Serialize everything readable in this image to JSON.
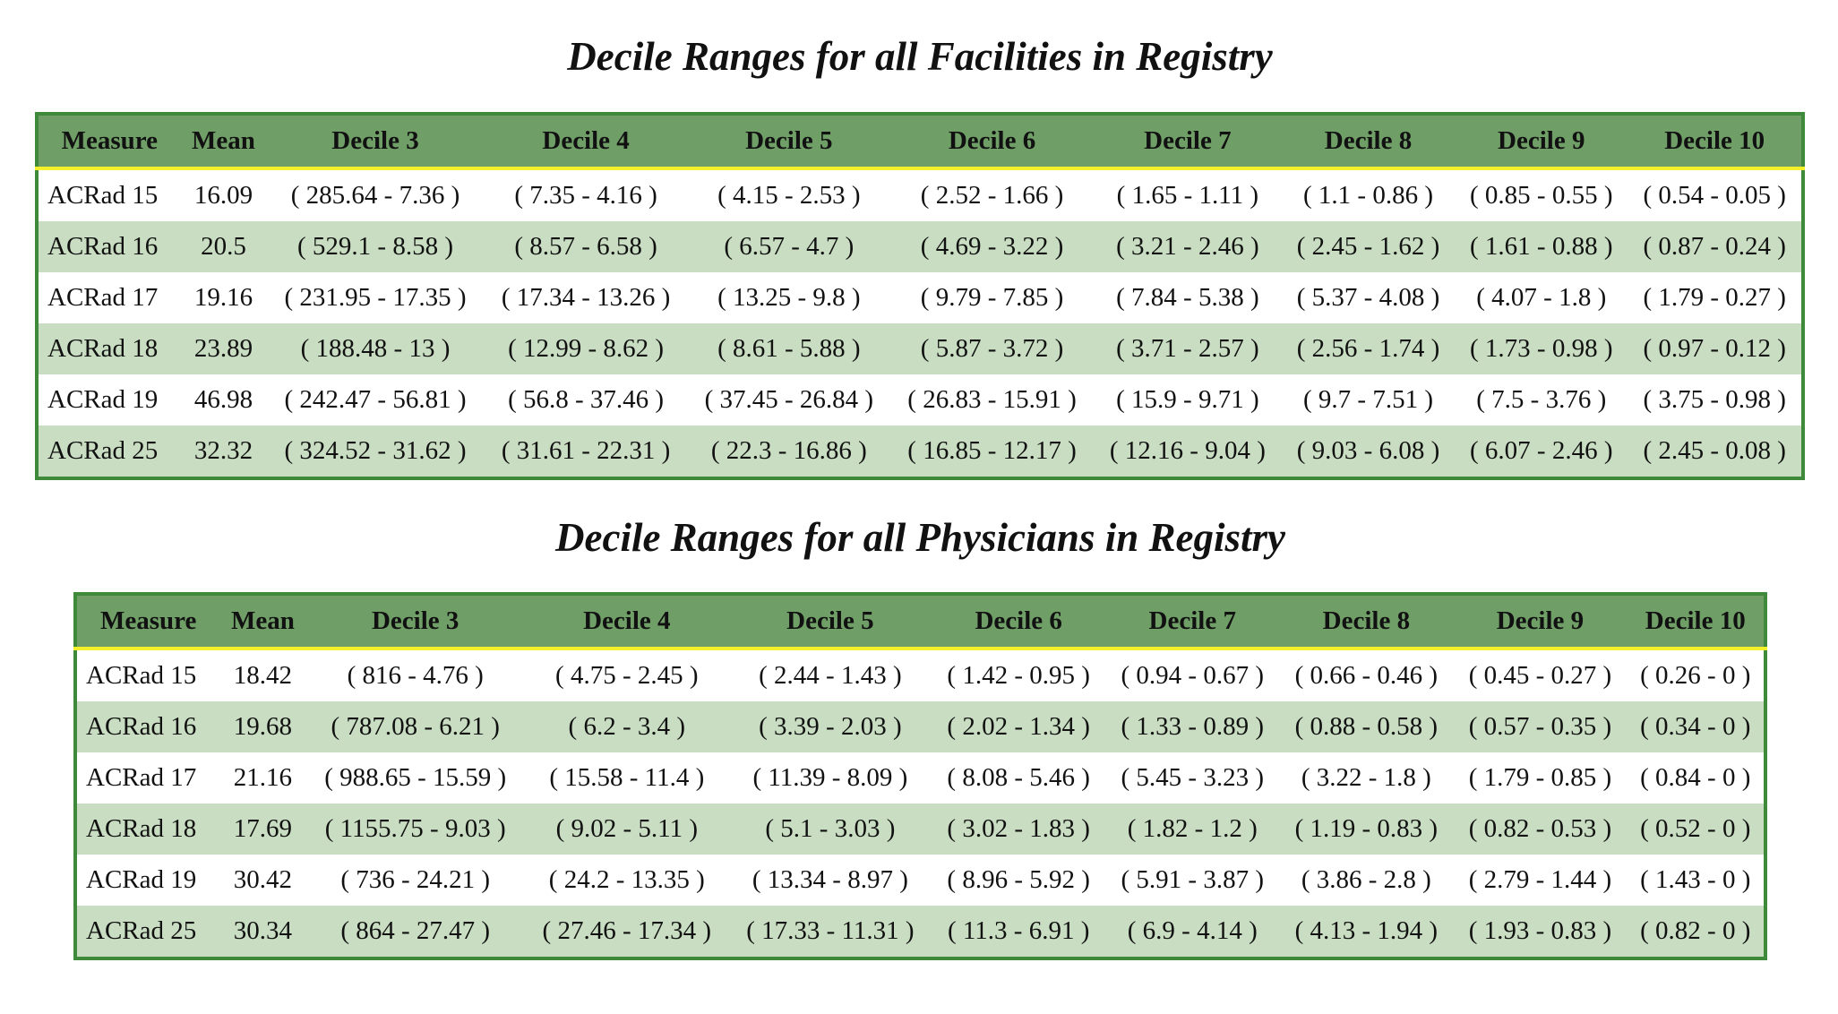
{
  "tables": [
    {
      "title": "Decile Ranges for all Facilities in Registry",
      "headers": [
        "Measure",
        "Mean",
        "Decile 3",
        "Decile 4",
        "Decile 5",
        "Decile 6",
        "Decile 7",
        "Decile 8",
        "Decile 9",
        "Decile 10"
      ],
      "rows": [
        [
          "ACRad 15",
          "16.09",
          "( 285.64 - 7.36 )",
          "( 7.35 - 4.16 )",
          "( 4.15 - 2.53 )",
          "( 2.52 - 1.66 )",
          "( 1.65 - 1.11 )",
          "( 1.1 - 0.86 )",
          "( 0.85 - 0.55 )",
          "( 0.54 - 0.05 )"
        ],
        [
          "ACRad 16",
          "20.5",
          "( 529.1 - 8.58 )",
          "( 8.57 - 6.58 )",
          "( 6.57 - 4.7 )",
          "( 4.69 - 3.22 )",
          "( 3.21 - 2.46 )",
          "( 2.45 - 1.62 )",
          "( 1.61 - 0.88 )",
          "( 0.87 - 0.24 )"
        ],
        [
          "ACRad 17",
          "19.16",
          "( 231.95 - 17.35 )",
          "( 17.34 - 13.26 )",
          "( 13.25 - 9.8 )",
          "( 9.79 - 7.85 )",
          "( 7.84 - 5.38 )",
          "( 5.37 - 4.08 )",
          "( 4.07 - 1.8 )",
          "( 1.79 - 0.27 )"
        ],
        [
          "ACRad 18",
          "23.89",
          "( 188.48 - 13 )",
          "( 12.99 - 8.62 )",
          "( 8.61 - 5.88 )",
          "( 5.87 - 3.72 )",
          "( 3.71 - 2.57 )",
          "( 2.56 - 1.74 )",
          "( 1.73 - 0.98 )",
          "( 0.97 - 0.12 )"
        ],
        [
          "ACRad 19",
          "46.98",
          "( 242.47 - 56.81 )",
          "( 56.8 - 37.46 )",
          "( 37.45 - 26.84 )",
          "( 26.83 - 15.91 )",
          "( 15.9 - 9.71 )",
          "( 9.7 - 7.51 )",
          "( 7.5 - 3.76 )",
          "( 3.75 - 0.98 )"
        ],
        [
          "ACRad 25",
          "32.32",
          "( 324.52 - 31.62 )",
          "( 31.61 - 22.31 )",
          "( 22.3 - 16.86 )",
          "( 16.85 - 12.17 )",
          "( 12.16 - 9.04 )",
          "( 9.03 - 6.08 )",
          "( 6.07 - 2.46 )",
          "( 2.45 - 0.08 )"
        ]
      ]
    },
    {
      "title": "Decile Ranges for all Physicians in Registry",
      "headers": [
        "Measure",
        "Mean",
        "Decile 3",
        "Decile 4",
        "Decile 5",
        "Decile 6",
        "Decile 7",
        "Decile 8",
        "Decile 9",
        "Decile 10"
      ],
      "rows": [
        [
          "ACRad 15",
          "18.42",
          "( 816 - 4.76 )",
          "( 4.75 - 2.45 )",
          "( 2.44 - 1.43 )",
          "( 1.42 - 0.95 )",
          "( 0.94 - 0.67 )",
          "( 0.66 - 0.46 )",
          "( 0.45 - 0.27 )",
          "( 0.26 - 0 )"
        ],
        [
          "ACRad 16",
          "19.68",
          "( 787.08 - 6.21 )",
          "( 6.2 - 3.4 )",
          "( 3.39 - 2.03 )",
          "( 2.02 - 1.34 )",
          "( 1.33 - 0.89 )",
          "( 0.88 - 0.58 )",
          "( 0.57 - 0.35 )",
          "( 0.34 - 0 )"
        ],
        [
          "ACRad 17",
          "21.16",
          "( 988.65 - 15.59 )",
          "( 15.58 - 11.4 )",
          "( 11.39 - 8.09 )",
          "( 8.08 - 5.46 )",
          "( 5.45 - 3.23 )",
          "( 3.22 - 1.8 )",
          "( 1.79 - 0.85 )",
          "( 0.84 - 0 )"
        ],
        [
          "ACRad 18",
          "17.69",
          "( 1155.75 - 9.03 )",
          "( 9.02 - 5.11 )",
          "( 5.1 - 3.03 )",
          "( 3.02 - 1.83 )",
          "( 1.82 - 1.2 )",
          "( 1.19 - 0.83 )",
          "( 0.82 - 0.53 )",
          "( 0.52 - 0 )"
        ],
        [
          "ACRad 19",
          "30.42",
          "( 736 - 24.21 )",
          "( 24.2 - 13.35 )",
          "( 13.34 - 8.97 )",
          "( 8.96 - 5.92 )",
          "( 5.91 - 3.87 )",
          "( 3.86 - 2.8 )",
          "( 2.79 - 1.44 )",
          "( 1.43 - 0 )"
        ],
        [
          "ACRad 25",
          "30.34",
          "( 864 - 27.47 )",
          "( 27.46 - 17.34 )",
          "( 17.33 - 11.31 )",
          "( 11.3 - 6.91 )",
          "( 6.9 - 4.14 )",
          "( 4.13 - 1.94 )",
          "( 1.93 - 0.83 )",
          "( 0.82 - 0 )"
        ]
      ]
    }
  ]
}
